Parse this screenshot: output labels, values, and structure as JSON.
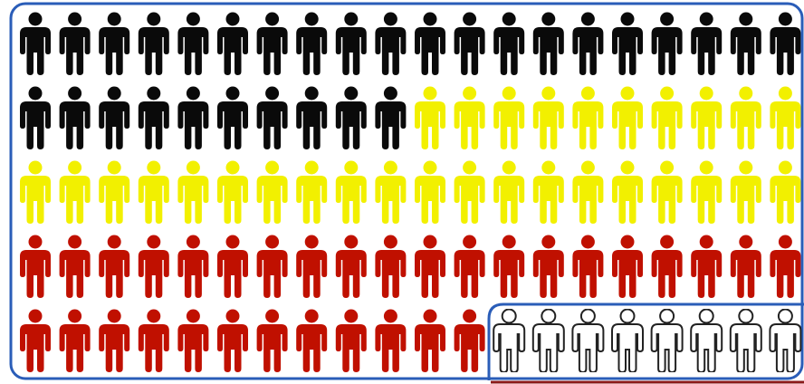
{
  "pictogram": {
    "columns": 20,
    "rows": 5,
    "groups": [
      {
        "color_name": "black",
        "fill": "#0a0a0a",
        "count": 30
      },
      {
        "color_name": "yellow",
        "fill": "#f2f000",
        "count": 30
      },
      {
        "color_name": "red",
        "fill": "#c01000",
        "count": 32
      },
      {
        "color_name": "white",
        "fill": "#ffffff",
        "count": 8
      }
    ],
    "icon": "person-icon",
    "frame_color": "#2a5db8",
    "highlight_frame_color": "#2a5db8",
    "highlight_underline_color": "#8b1a1a"
  }
}
